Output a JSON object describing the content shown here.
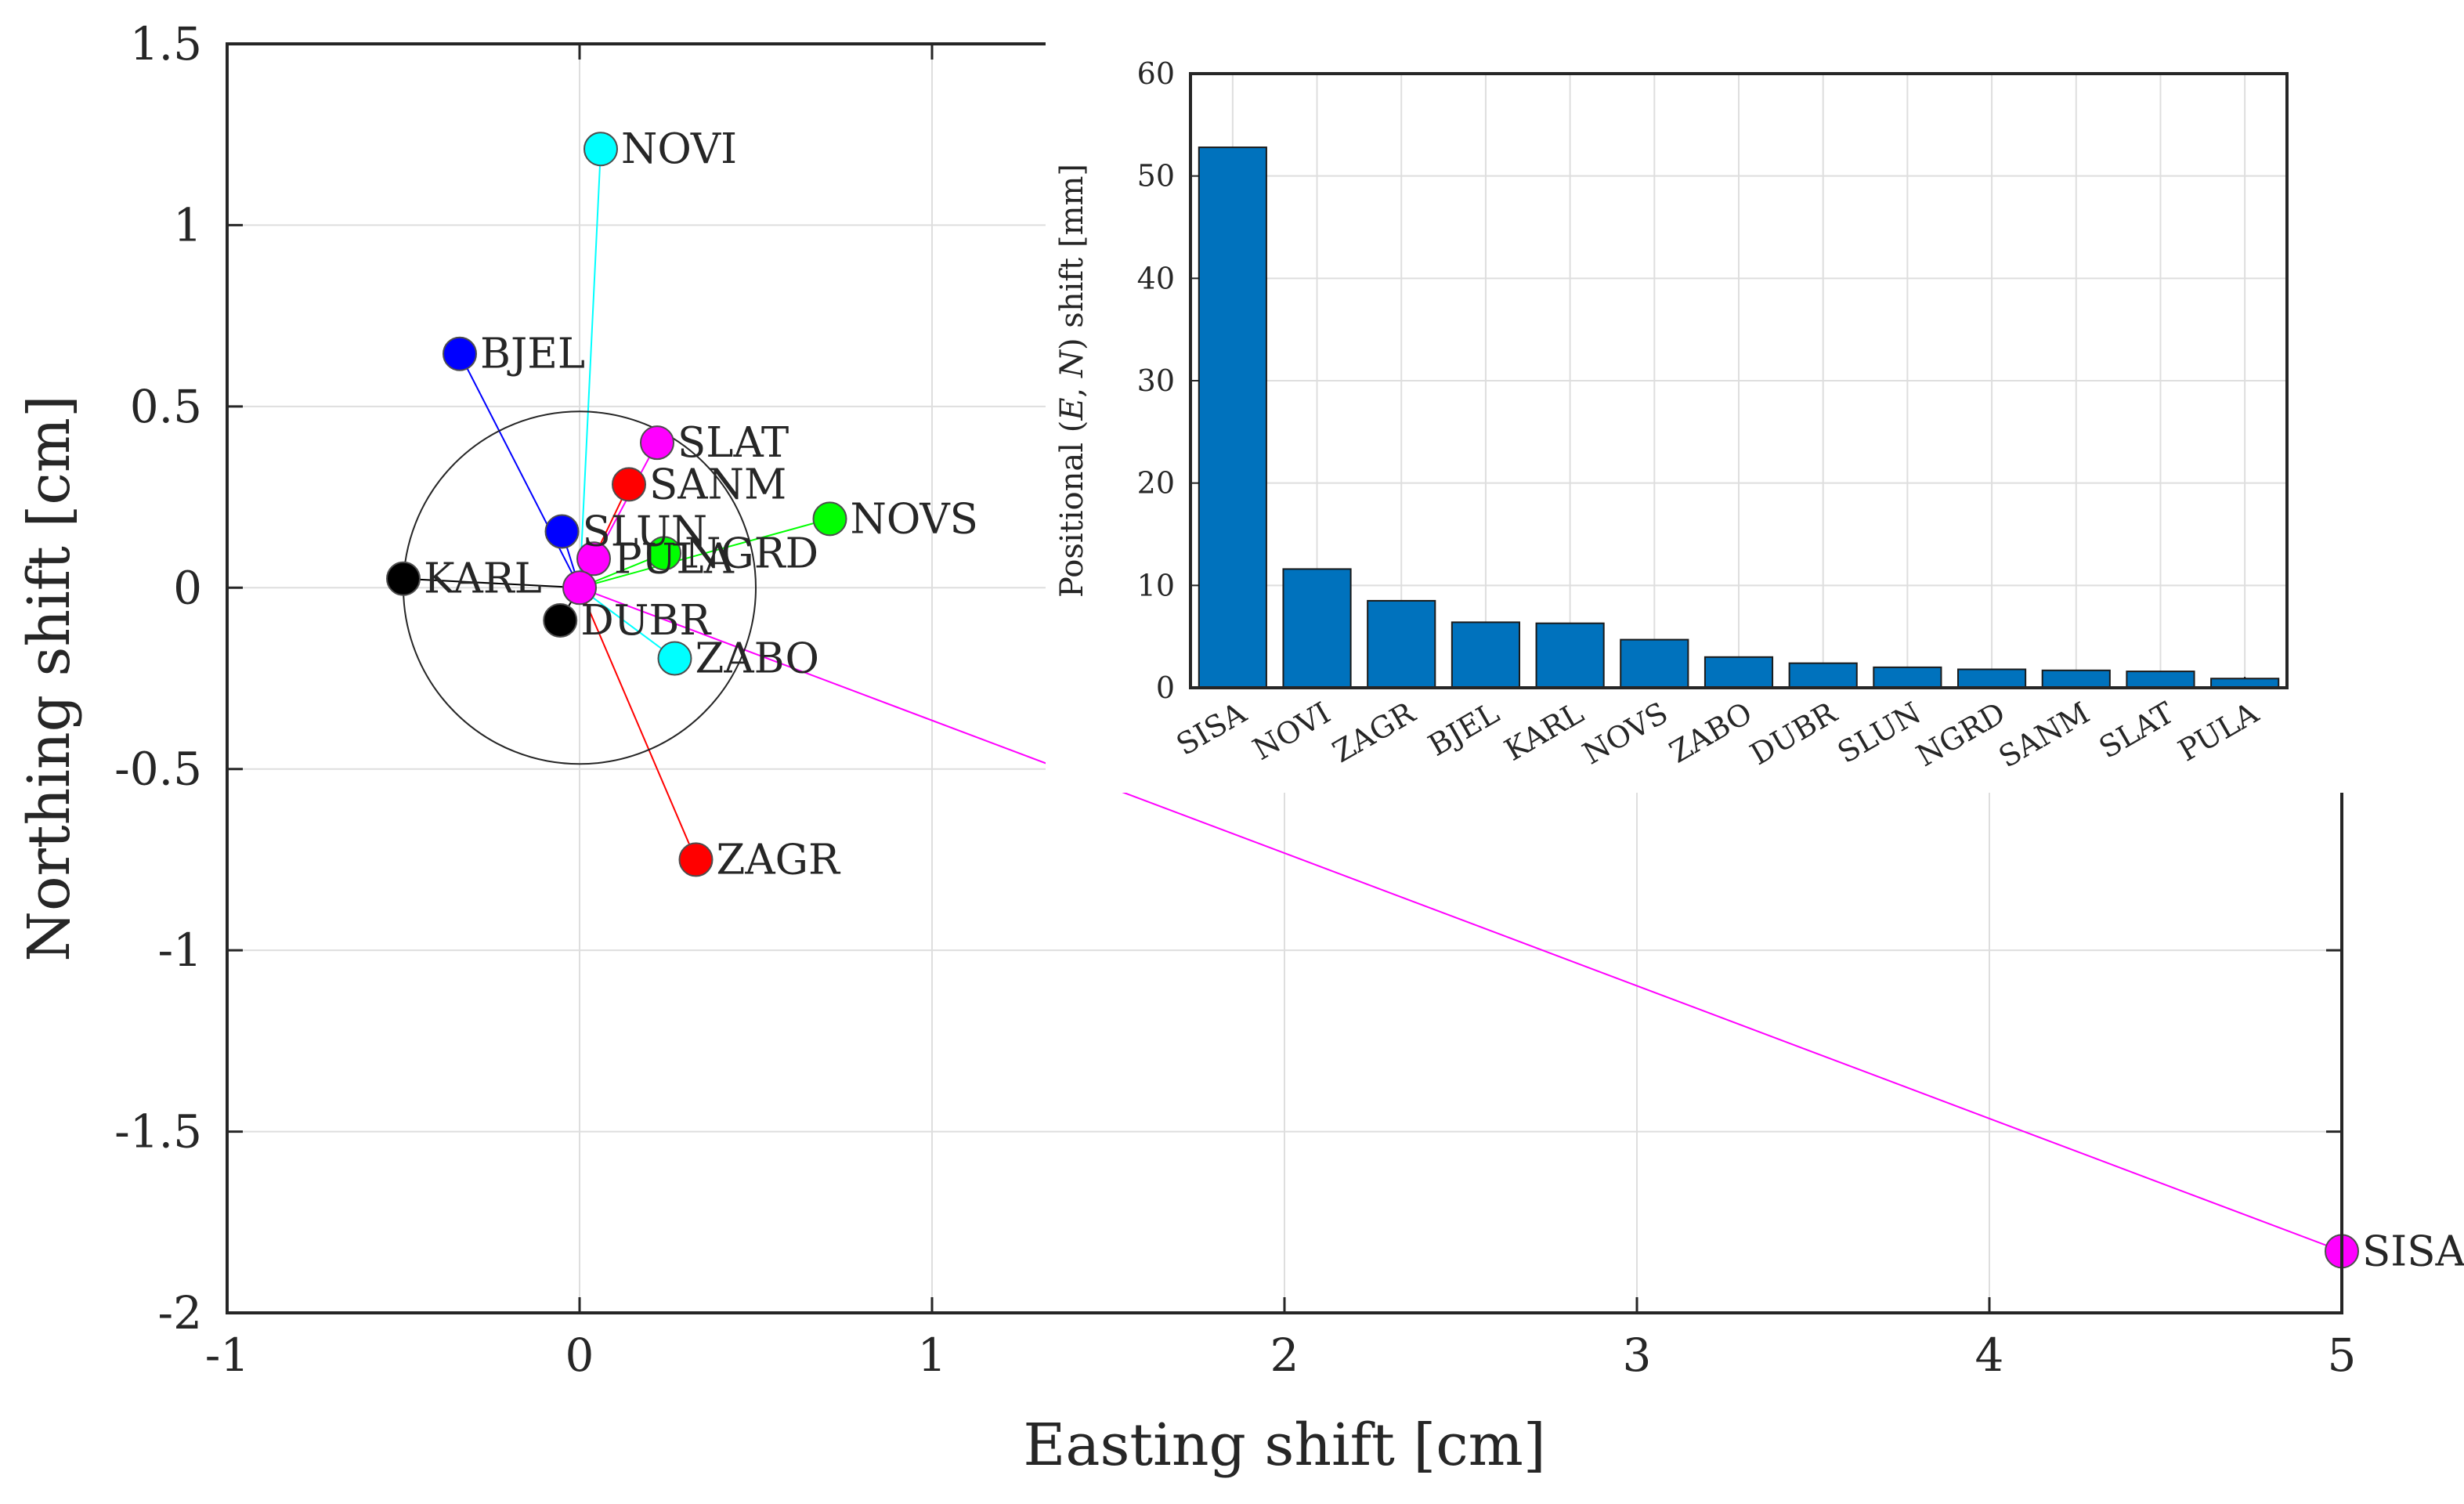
{
  "chart_data": [
    {
      "type": "scatter",
      "xlabel": "Easting shift [cm]",
      "ylabel": "Northing shift [cm]",
      "xlim": [
        -1,
        5
      ],
      "ylim": [
        -2,
        1.5
      ],
      "xticks": [
        -1,
        0,
        1,
        2,
        3,
        4,
        5
      ],
      "xticklabels": [
        "-1",
        "0",
        "1",
        "2",
        "3",
        "4",
        "5"
      ],
      "yticks": [
        -2,
        -1.5,
        -1,
        -0.5,
        0,
        0.5,
        1,
        1.5
      ],
      "yticklabels": [
        "-2",
        "-1.5",
        "-1",
        "-0.5",
        "0",
        "0.5",
        "1",
        "1.5"
      ],
      "grid": true,
      "reference_circle": {
        "center": [
          0,
          0
        ],
        "radius": 0.5
      },
      "points": [
        {
          "name": "NOVI",
          "e": 0.06,
          "n": 1.21,
          "color": "#00ffff"
        },
        {
          "name": "BJEL",
          "e": -0.34,
          "n": 0.645,
          "color": "#0000ff"
        },
        {
          "name": "SLAT",
          "e": 0.22,
          "n": 0.4,
          "color": "#ff00ff"
        },
        {
          "name": "SANM",
          "e": 0.14,
          "n": 0.285,
          "color": "#ff0000"
        },
        {
          "name": "NOVS",
          "e": 0.71,
          "n": 0.19,
          "color": "#00ff00"
        },
        {
          "name": "SLUN",
          "e": -0.05,
          "n": 0.155,
          "color": "#0000ff"
        },
        {
          "name": "NGRD",
          "e": 0.24,
          "n": 0.095,
          "color": "#00ff00"
        },
        {
          "name": "PULA",
          "e": 0.04,
          "n": 0.08,
          "color": "#ff00ff"
        },
        {
          "name": "KARL",
          "e": -0.5,
          "n": 0.025,
          "color": "#000000"
        },
        {
          "name": "DUBR",
          "e": -0.055,
          "n": -0.09,
          "color": "#000000"
        },
        {
          "name": "ZABO",
          "e": 0.27,
          "n": -0.195,
          "color": "#00ffff"
        },
        {
          "name": "ZAGR",
          "e": 0.33,
          "n": -0.75,
          "color": "#ff0000"
        },
        {
          "name": "SISA",
          "e": 5.0,
          "n": -1.83,
          "color": "#ff00ff"
        }
      ]
    },
    {
      "type": "bar",
      "ylabel_parts": [
        "Positional (",
        "E",
        ", ",
        "N",
        ") shift [mm]"
      ],
      "ylim": [
        0,
        60
      ],
      "yticks": [
        0,
        10,
        20,
        30,
        40,
        50,
        60
      ],
      "yticklabels": [
        "0",
        "10",
        "20",
        "30",
        "40",
        "50",
        "60"
      ],
      "grid": true,
      "bar_color": "#0072bd",
      "categories": [
        "SISA",
        "NOVI",
        "ZAGR",
        "BJEL",
        "KARL",
        "NOVS",
        "ZABO",
        "DUBR",
        "SLUN",
        "NGRD",
        "SANM",
        "SLAT",
        "PULA"
      ],
      "values": [
        52.8,
        11.6,
        8.5,
        6.4,
        6.3,
        4.7,
        3.0,
        2.4,
        2.0,
        1.8,
        1.7,
        1.6,
        0.9
      ]
    }
  ]
}
